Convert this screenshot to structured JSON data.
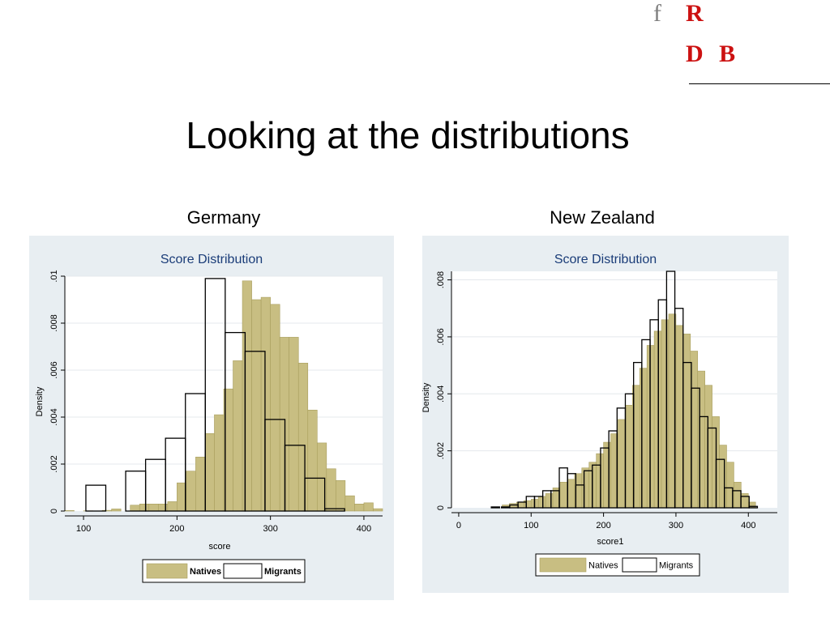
{
  "slide": {
    "title": "Looking at the distributions",
    "logo": {
      "f": "f",
      "r": "R",
      "db": "D B"
    }
  },
  "colors": {
    "natives_fill": "#c8be82",
    "natives_stroke": "#a89e5e",
    "migrants_stroke": "#000000",
    "panel_bg": "#e8eef2",
    "plot_bg": "#ffffff",
    "title_color": "#1a3c78",
    "logo_red": "#cc1111"
  },
  "chart_data": [
    {
      "type": "bar",
      "country": "Germany",
      "title": "Score Distribution",
      "xlabel": "score",
      "ylabel": "Density",
      "xlim": [
        80,
        420
      ],
      "ylim": [
        0,
        0.01
      ],
      "xticks": [
        100,
        200,
        300,
        400
      ],
      "xtick_labels": [
        "100",
        "200",
        "300",
        "400"
      ],
      "yticks": [
        0,
        0.002,
        0.004,
        0.006,
        0.008,
        0.01
      ],
      "ytick_labels": [
        "0",
        ".002",
        ".004",
        ".006",
        ".008",
        ".01"
      ],
      "grid": true,
      "legend": {
        "position": "bottom",
        "entries": [
          "Natives",
          "Migrants"
        ]
      },
      "series": [
        {
          "name": "Natives",
          "bin_width": 10,
          "bin_starts": [
            80,
            90,
            100,
            110,
            120,
            130,
            140,
            150,
            160,
            170,
            180,
            190,
            200,
            210,
            220,
            230,
            240,
            250,
            260,
            270,
            280,
            290,
            300,
            310,
            320,
            330,
            340,
            350,
            360,
            370,
            380,
            390,
            400,
            410
          ],
          "values": [
            2e-05,
            0,
            1e-05,
            0,
            3e-05,
            9e-05,
            0,
            0.00025,
            0.0003,
            0.0003,
            0.0003,
            0.0004,
            0.0012,
            0.0017,
            0.0023,
            0.0033,
            0.0041,
            0.0052,
            0.0064,
            0.0098,
            0.009,
            0.0091,
            0.0088,
            0.0074,
            0.0074,
            0.0063,
            0.0043,
            0.0029,
            0.0018,
            0.0013,
            0.00065,
            0.0003,
            0.00035,
            0.0001
          ]
        },
        {
          "name": "Migrants",
          "bin_width": 21.3,
          "bin_starts": [
            102.5,
            123.8,
            145.1,
            166.4,
            187.7,
            209,
            230.3,
            251.6,
            272.9,
            294.2,
            315.5,
            336.8,
            358.1
          ],
          "values": [
            0.0011,
            0,
            0.0017,
            0.0022,
            0.0031,
            0.005,
            0.0099,
            0.0076,
            0.0068,
            0.0039,
            0.0028,
            0.0014,
            0.0001
          ]
        }
      ]
    },
    {
      "type": "bar",
      "country": "New Zealand",
      "title": "Score Distribution",
      "xlabel": "score1",
      "ylabel": "Density",
      "xlim": [
        -10,
        440
      ],
      "ylim": [
        0,
        0.0083
      ],
      "xticks": [
        0,
        100,
        200,
        300,
        400
      ],
      "xtick_labels": [
        "0",
        "100",
        "200",
        "300",
        "400"
      ],
      "yticks": [
        0,
        0.002,
        0.004,
        0.006,
        0.008
      ],
      "ytick_labels": [
        "0",
        ".002",
        ".004",
        ".006",
        ".008"
      ],
      "grid": true,
      "legend": {
        "position": "bottom",
        "entries": [
          "Natives",
          "Migrants"
        ]
      },
      "series": [
        {
          "name": "Natives",
          "bin_width": 10,
          "bin_starts": [
            60,
            70,
            80,
            90,
            100,
            110,
            120,
            130,
            140,
            150,
            160,
            170,
            180,
            190,
            200,
            210,
            220,
            230,
            240,
            250,
            260,
            270,
            280,
            290,
            300,
            310,
            320,
            330,
            340,
            350,
            360,
            370,
            380,
            390,
            400
          ],
          "values": [
            0.0001,
            0.00015,
            0.0002,
            0.00025,
            0.0003,
            0.0004,
            0.0005,
            0.0007,
            0.0009,
            0.001,
            0.0012,
            0.0014,
            0.0016,
            0.0019,
            0.0023,
            0.0026,
            0.0031,
            0.0036,
            0.0043,
            0.0049,
            0.0057,
            0.0062,
            0.0066,
            0.0068,
            0.0064,
            0.0061,
            0.0055,
            0.0048,
            0.0043,
            0.0032,
            0.0022,
            0.0016,
            0.0009,
            0.0005,
            0.0002
          ]
        },
        {
          "name": "Migrants",
          "bin_width": 11.4,
          "bin_starts": [
            45,
            59,
            70.5,
            81.9,
            93.3,
            104.7,
            116.1,
            127.5,
            138.9,
            150.3,
            161.7,
            173.1,
            184.5,
            195.9,
            207.3,
            218.7,
            230.1,
            241.5,
            252.9,
            264.3,
            275.7,
            287.1,
            298.5,
            309.9,
            321.3,
            332.7,
            344.1,
            355.5,
            366.9,
            378.3,
            389.7,
            401.1
          ],
          "values": [
            3e-05,
            3e-05,
            0.0001,
            0.0002,
            0.0004,
            0.0004,
            0.0006,
            0.0006,
            0.0014,
            0.0012,
            0.0008,
            0.0013,
            0.0015,
            0.0021,
            0.0027,
            0.0035,
            0.004,
            0.0051,
            0.0059,
            0.0066,
            0.0073,
            0.0083,
            0.007,
            0.0051,
            0.0042,
            0.0032,
            0.0028,
            0.0017,
            0.0007,
            0.0006,
            0.0004,
            5e-05
          ]
        }
      ]
    }
  ]
}
